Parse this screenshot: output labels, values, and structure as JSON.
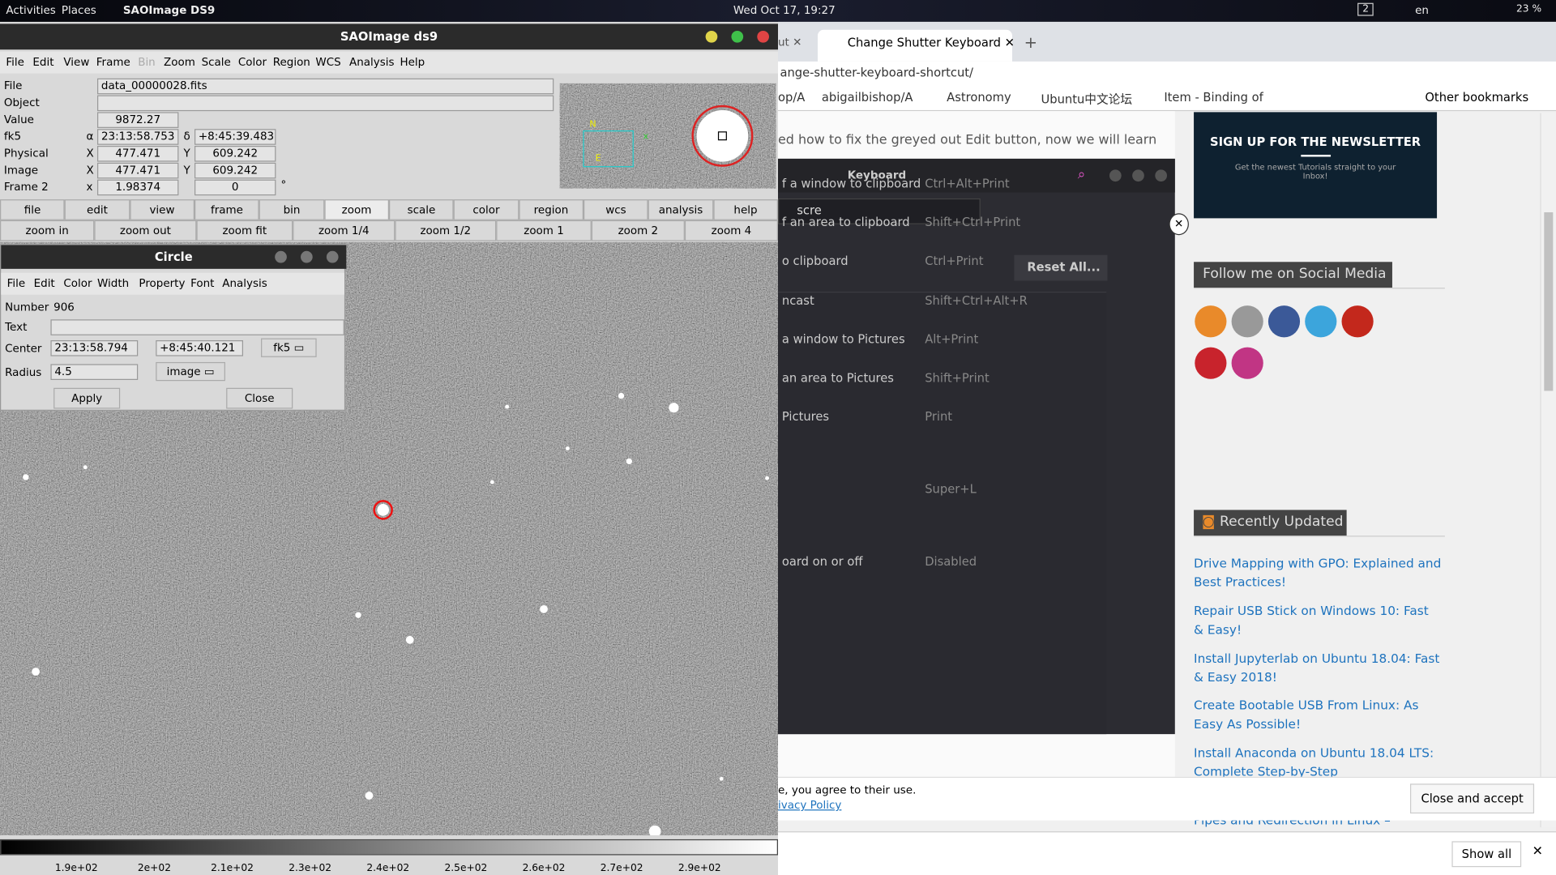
{
  "topbar": {
    "activities": "Activities",
    "places": "Places",
    "app": "SAOImage DS9",
    "clock": "Wed Oct 17, 19:27",
    "workspace": "2",
    "lang": "en",
    "battery": "23 %"
  },
  "ds9": {
    "title": "SAOImage ds9",
    "menu": [
      "File",
      "Edit",
      "View",
      "Frame",
      "Bin",
      "Zoom",
      "Scale",
      "Color",
      "Region",
      "WCS",
      "Analysis",
      "Help"
    ],
    "info": {
      "file_label": "File",
      "file": "data_00000028.fits",
      "object_label": "Object",
      "value_label": "Value",
      "value": "9872.27",
      "fk5_label": "fk5",
      "alpha": "α",
      "ra": "23:13:58.753",
      "delta": "δ",
      "dec": "+8:45:39.483",
      "physical_label": "Physical",
      "phys_x_label": "X",
      "phys_x": "477.471",
      "phys_y_label": "Y",
      "phys_y": "609.242",
      "image_label": "Image",
      "img_x_label": "X",
      "img_x": "477.471",
      "img_y_label": "Y",
      "img_y": "609.242",
      "frame_label": "Frame 2",
      "frame_x_label": "x",
      "frame_x": "1.98374",
      "frame_angle": "0",
      "degree": "°"
    },
    "buttons": [
      "file",
      "edit",
      "view",
      "frame",
      "bin",
      "zoom",
      "scale",
      "color",
      "region",
      "wcs",
      "analysis",
      "help"
    ],
    "zoom_buttons": [
      "zoom in",
      "zoom out",
      "zoom fit",
      "zoom 1/4",
      "zoom 1/2",
      "zoom 1",
      "zoom 2",
      "zoom 4"
    ],
    "colorbar": [
      "1.9e+02",
      "2e+02",
      "2.1e+02",
      "2.3e+02",
      "2.4e+02",
      "2.5e+02",
      "2.6e+02",
      "2.7e+02",
      "2.9e+02"
    ]
  },
  "circle": {
    "title": "Circle",
    "menu": [
      "File",
      "Edit",
      "Color",
      "Width",
      "Property",
      "Font",
      "Analysis"
    ],
    "number_label": "Number",
    "number": "906",
    "text_label": "Text",
    "center_label": "Center",
    "center_ra": "23:13:58.794",
    "center_dec": "+8:45:40.121",
    "center_system": "fk5",
    "radius_label": "Radius",
    "radius": "4.5",
    "radius_unit": "image",
    "apply": "Apply",
    "close": "Close"
  },
  "browser": {
    "tabs": [
      "ut",
      "Change Shutter Keyboard"
    ],
    "url": "ange-shutter-keyboard-shortcut/",
    "bookmarks": [
      "op/A",
      "abigailbishop/A",
      "Astronomy",
      "Ubuntu中文论坛",
      "Item - Binding of"
    ],
    "other_bookmarks": "Other bookmarks",
    "article_text": "ed how to fix the greyed out Edit button, now we will learn",
    "newsletter_title": "SIGN UP FOR THE NEWSLETTER",
    "newsletter_sub": "Get the newest Tutorials straight to your Inbox!",
    "social_title": "Follow me on Social Media",
    "recent_title": "Recently Updated",
    "recent": [
      "Drive Mapping with GPO: Explained and Best Practices!",
      "Repair USB Stick on Windows 10: Fast & Easy!",
      "Install Jupyterlab on Ubuntu 18.04: Fast & Easy 2018!",
      "Create Bootable USB From Linux: As Easy As Possible!",
      "Install Anaconda on Ubuntu 18.04 LTS: Complete Step-by-Step",
      "Pipes and Redirection in Linux –"
    ],
    "cookie": "e, you agree to their use.",
    "privacy": "ivacy Policy",
    "close_accept": "Close and accept",
    "show_all": "Show all"
  },
  "keyboard": {
    "title": "Keyboard",
    "search": "scre",
    "reset": "Reset All...",
    "shortcuts": [
      {
        "name": "f a window to clipboard",
        "keys": "Ctrl+Alt+Print"
      },
      {
        "name": "f an area to clipboard",
        "keys": "Shift+Ctrl+Print"
      },
      {
        "name": "o clipboard",
        "keys": "Ctrl+Print"
      },
      {
        "name": "ncast",
        "keys": "Shift+Ctrl+Alt+R"
      },
      {
        "name": "a window to Pictures",
        "keys": "Alt+Print"
      },
      {
        "name": "an area to Pictures",
        "keys": "Shift+Print"
      },
      {
        "name": "Pictures",
        "keys": "Print"
      },
      {
        "keys": "Super+L"
      },
      {
        "name": "oard on or off",
        "keys": "Disabled"
      }
    ]
  }
}
